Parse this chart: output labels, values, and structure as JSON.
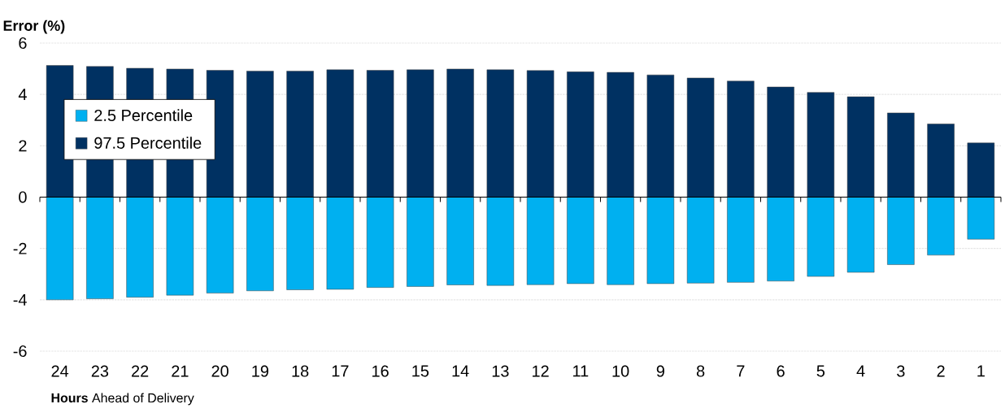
{
  "chart_data": {
    "type": "bar",
    "ylabel": "Error (%)",
    "xlabel": "**Hours** Ahead of Delivery",
    "categories": [
      "24",
      "23",
      "22",
      "21",
      "20",
      "19",
      "18",
      "17",
      "16",
      "15",
      "14",
      "13",
      "12",
      "11",
      "10",
      "9",
      "8",
      "7",
      "6",
      "5",
      "4",
      "3",
      "2",
      "1"
    ],
    "series": [
      {
        "name": "2.5 Percentile",
        "color": "#00b0f0",
        "values": [
          -4.0,
          -3.96,
          -3.9,
          -3.82,
          -3.74,
          -3.65,
          -3.61,
          -3.59,
          -3.52,
          -3.48,
          -3.42,
          -3.44,
          -3.41,
          -3.37,
          -3.41,
          -3.37,
          -3.35,
          -3.32,
          -3.27,
          -3.09,
          -2.93,
          -2.63,
          -2.26,
          -1.64
        ]
      },
      {
        "name": "97.5 Percentile",
        "color": "#003162",
        "values": [
          5.13,
          5.09,
          5.02,
          4.99,
          4.94,
          4.91,
          4.91,
          4.96,
          4.94,
          4.96,
          4.99,
          4.96,
          4.93,
          4.88,
          4.86,
          4.76,
          4.64,
          4.52,
          4.29,
          4.08,
          3.91,
          3.28,
          2.85,
          2.11
        ]
      }
    ],
    "stacked": true,
    "ylim": [
      -6,
      6
    ],
    "yticks": [
      -6,
      -4,
      -2,
      0,
      2,
      4,
      6
    ],
    "grid": "y",
    "legend": "left"
  }
}
